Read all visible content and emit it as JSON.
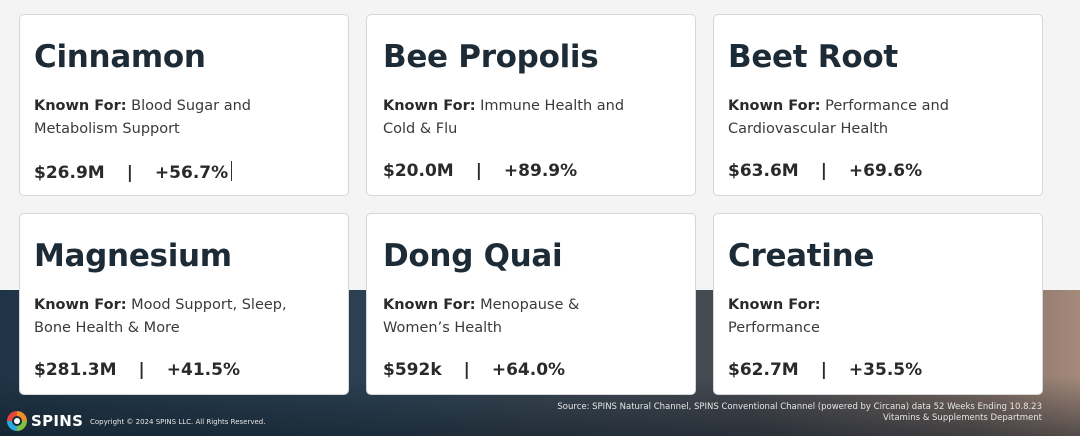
{
  "cards": [
    {
      "title": "Cinnamon",
      "known_label": "Known For:",
      "line1": "Blood Sugar and",
      "line2": "Metabolism Support",
      "sales": "$26.9M",
      "separator": "|",
      "growth": "+56.7%"
    },
    {
      "title": "Bee Propolis",
      "known_label": "Known For:",
      "line1": "Immune Health and",
      "line2": "Cold & Flu",
      "sales": "$20.0M",
      "separator": "|",
      "growth": "+89.9%"
    },
    {
      "title": "Beet Root",
      "known_label": "Known For:",
      "line1": "Performance and",
      "line2": "Cardiovascular Health",
      "sales": "$63.6M",
      "separator": "|",
      "growth": "+69.6%"
    },
    {
      "title": "Magnesium",
      "known_label": "Known For:",
      "line1": "Mood Support, Sleep,",
      "line2": "Bone Health & More",
      "sales": "$281.3M",
      "separator": "|",
      "growth": "+41.5%"
    },
    {
      "title": "Dong Quai",
      "known_label": "Known For:",
      "line1": "Menopause &",
      "line2": "Women’s Health",
      "sales": "$592k",
      "separator": "|",
      "growth": "+64.0%"
    },
    {
      "title": "Creatine",
      "known_label": "Known For:",
      "line1": "",
      "line2": "Performance",
      "sales": "$62.7M",
      "separator": "|",
      "growth": "+35.5%"
    }
  ],
  "footer": {
    "logo_text": "SPINS",
    "copyright": "Copyright © 2024 SPINS LLC. All Rights Reserved.",
    "source_line1": "Source: SPINS Natural Channel, SPINS Conventional Channel (powered by Circana) data 52 Weeks Ending 10.8.23",
    "source_line2": "Vitamins & Supplements Department"
  },
  "colors": {
    "title": "#1d2b36",
    "card_bg": "#ffffff",
    "footer_dark": "#1f3547",
    "footer_warm": "#a58a7a"
  }
}
